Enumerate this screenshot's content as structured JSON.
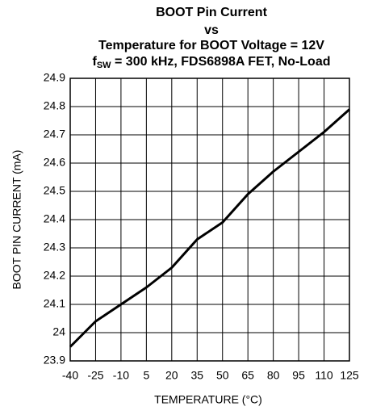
{
  "chart_data": {
    "type": "line",
    "title_lines": [
      "BOOT Pin Current",
      "vs",
      "Temperature for BOOT Voltage = 12V"
    ],
    "title_last": [
      "f",
      "SW",
      " = 300 kHz, FDS6898A FET, No-Load"
    ],
    "x_label": "TEMPERATURE (°C)",
    "y_label": "BOOT PIN CURRENT (mA)",
    "x": [
      -40,
      -25,
      -10,
      5,
      20,
      35,
      50,
      65,
      80,
      95,
      110,
      125
    ],
    "series": [
      {
        "name": "BOOT Pin Current",
        "color": "#000000",
        "values": [
          23.95,
          24.04,
          24.1,
          24.16,
          24.23,
          24.33,
          24.39,
          24.49,
          24.57,
          24.64,
          24.71,
          24.79
        ]
      }
    ],
    "xlim": [
      -40,
      125
    ],
    "xticks": [
      -40,
      -25,
      -10,
      5,
      20,
      35,
      50,
      65,
      80,
      95,
      110,
      125
    ],
    "ylim": [
      23.9,
      24.9
    ],
    "yticks": [
      23.9,
      24,
      24.1,
      24.2,
      24.3,
      24.4,
      24.5,
      24.6,
      24.7,
      24.8,
      24.9
    ],
    "grid": true
  }
}
